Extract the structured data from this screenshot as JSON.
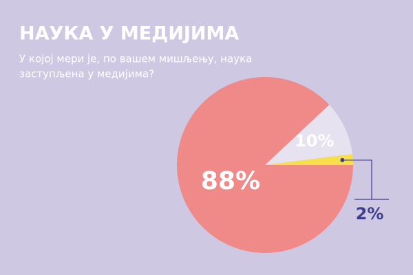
{
  "chart_data": {
    "type": "pie",
    "title": "НАУКА У МЕДИЈИМА",
    "subtitle": [
      "У којој мери је, по вашем мишљењу, наука",
      "заступљена у медијима?"
    ],
    "categories": [
      null,
      null,
      null
    ],
    "values": [
      10,
      2,
      88
    ],
    "value_labels": [
      "10%",
      "2%",
      "88%"
    ],
    "colors": [
      "#e6e2f0",
      "#f7df4a",
      "#ef8a89"
    ]
  }
}
